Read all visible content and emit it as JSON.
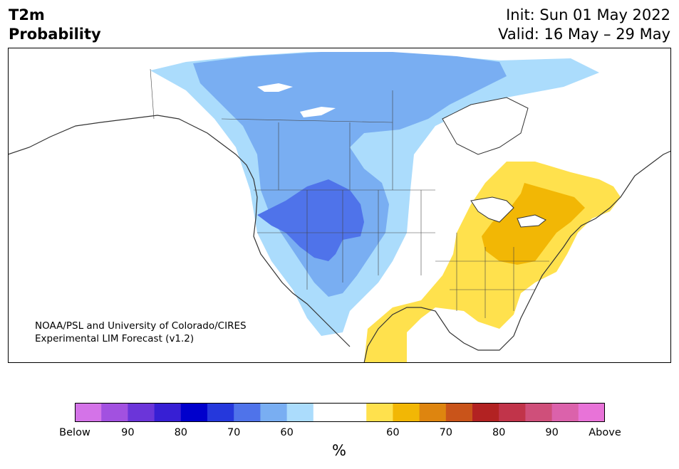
{
  "title": {
    "line1": "T2m",
    "line2": "Probability"
  },
  "header": {
    "init": "Init: Sun 01 May 2022",
    "valid": "Valid: 16 May – 29 May"
  },
  "credit": {
    "line1": "NOAA/PSL and University of Colorado/CIRES",
    "line2": "Experimental LIM Forecast (v1.2)"
  },
  "colorbar": {
    "colors": [
      "#d473e8",
      "#a251e0",
      "#6b35d9",
      "#371fd4",
      "#0000cc",
      "#2538dc",
      "#4f73ea",
      "#79aef2",
      "#abdcfc",
      "#ffffff",
      "#ffffff",
      "#ffe14d",
      "#f2b705",
      "#de850f",
      "#c9541a",
      "#b22222",
      "#c1344a",
      "#cf4f7a",
      "#db62ab",
      "#e873d8"
    ],
    "tick_labels": [
      "Below",
      "90",
      "80",
      "70",
      "60",
      "60",
      "70",
      "80",
      "90",
      "Above"
    ],
    "unit": "%"
  },
  "map_legend_colors": {
    "land": "#ffffff",
    "ocean": "#ffffff",
    "below_50": "#abdcfc",
    "below_60": "#79aef2",
    "below_70": "#4f73ea",
    "above_50": "#ffe14d",
    "above_60": "#f2b705",
    "coast": "#333333"
  }
}
